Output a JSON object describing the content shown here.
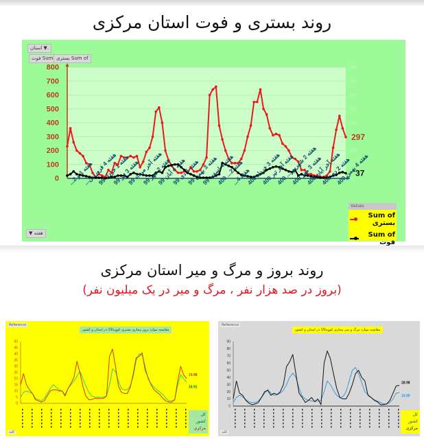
{
  "page": {
    "title_top": "روند بستری و فوت استان مرکزی",
    "title_bottom": "روند بروز و مرگ و میر استان مرکزی",
    "subtitle_bottom": "(بروز در صد هزار نفر ، مرگ و میر در یک میلیون نفر)"
  },
  "top_chart": {
    "filter_button": "استان ▼.",
    "field_buttons": [
      "Sum of فوت",
      "Sum of بستری"
    ],
    "axis_button": "هفته ▼",
    "legend_header": "Values",
    "legend": [
      {
        "label": "Sum of بستری",
        "color": "#e8191c"
      },
      {
        "label": "Sum of فوت",
        "color": "#000000"
      }
    ],
    "end_labels": {
      "hospitalized": "297",
      "deaths": "37"
    }
  },
  "bottom_left_chart": {
    "tag": "Reference",
    "title": "مقایسه موارد بروز بیماری بستری کووید19 در استان و کشور",
    "legend": [
      {
        "label": "کل کشور",
        "color": "#2ecc71"
      },
      {
        "label": "مرکزی",
        "color": "#d4370a"
      }
    ],
    "end_labels": [
      "19.98",
      "16.91"
    ],
    "footer_tag": "کلید"
  },
  "bottom_right_chart": {
    "tag": "Reference",
    "title": "مقایسه موارد مرگ و میر بیماری کووید19 در استان و کشور",
    "legend": [
      {
        "label": "کل کشور",
        "color": "#3a9ad9"
      },
      {
        "label": "مرکزی",
        "color": "#111111"
      }
    ],
    "end_labels": [
      "28.98",
      "18.88"
    ],
    "footer_tag": "کلید"
  },
  "chart_data": [
    {
      "type": "line",
      "title": "روند بستری و فوت استان مرکزی",
      "xlabel": "هفته",
      "ylabel": "",
      "ylim": [
        0,
        800
      ],
      "yticks": [
        0,
        100,
        200,
        300,
        400,
        500,
        600,
        700,
        800
      ],
      "grid": true,
      "legend_position": "bottom-right",
      "categories": [
        "هفته 1 و 2...",
        "هفته 4 فروردین...",
        "هفته 1 خرداد 99",
        "هفته 3 تیر 99",
        "هفته آخر مرداد 99",
        "هفته 2 مهر 99",
        "هفته 4 آبان 99",
        "هفته 1 دی 99",
        "هفته 3 بهمن 99",
        "هفته 4 اسفند 99",
        "هفته 2... 400",
        "هفته 4...",
        "هفته 3 خرداد 400",
        "هفته آخر تیر 400",
        "هفته 2 شهریور... 400",
        "هفته 3 مهر 400",
        "هفته آخر آبان 400",
        "هفته 2 دی 400",
        "هفته 4 بهمن 400"
      ],
      "series": [
        {
          "name": "Sum of بستری",
          "color": "#e8191c",
          "values": [
            230,
            360,
            260,
            200,
            180,
            160,
            110,
            100,
            40,
            10,
            30,
            20,
            10,
            60,
            40,
            110,
            100,
            160,
            150,
            150,
            160,
            150,
            160,
            80,
            120,
            190,
            220,
            300,
            480,
            510,
            400,
            200,
            130,
            90,
            60,
            40,
            40,
            50,
            40,
            80,
            50,
            50,
            60,
            100,
            150,
            600,
            640,
            660,
            380,
            280,
            200,
            140,
            110,
            110,
            110,
            140,
            200,
            300,
            380,
            550,
            550,
            640,
            500,
            460,
            360,
            310,
            320,
            310,
            250,
            230,
            200,
            150,
            140,
            120,
            60,
            60,
            30,
            30,
            20,
            20,
            10,
            10,
            20,
            50,
            220,
            350,
            450,
            360,
            297
          ],
          "end_label": 297
        },
        {
          "name": "Sum of فوت",
          "color": "#000000",
          "values": [
            20,
            30,
            50,
            30,
            25,
            20,
            15,
            10,
            5,
            5,
            5,
            5,
            0,
            5,
            10,
            10,
            20,
            20,
            20,
            10,
            30,
            40,
            30,
            30,
            25,
            20,
            20,
            20,
            40,
            50,
            40,
            80,
            90,
            95,
            100,
            100,
            80,
            60,
            40,
            30,
            20,
            10,
            5,
            5,
            5,
            5,
            10,
            20,
            30,
            110,
            100,
            90,
            80,
            60,
            40,
            25,
            20,
            15,
            10,
            10,
            20,
            30,
            40,
            60,
            70,
            80,
            85,
            80,
            70,
            60,
            50,
            45,
            60,
            20,
            30,
            20,
            20,
            15,
            10,
            10,
            5,
            5,
            5,
            10,
            20,
            25,
            40,
            45,
            37
          ],
          "end_label": 37
        }
      ]
    },
    {
      "type": "line",
      "title": "مقایسه موارد بروز بیماری بستری کووید19 در استان و کشور",
      "ylim": [
        0,
        50
      ],
      "yticks": [
        0,
        5,
        10,
        15,
        20,
        25,
        30,
        35,
        40,
        45,
        50
      ],
      "grid": false,
      "legend_position": "bottom-right",
      "series": [
        {
          "name": "کل کشور",
          "color": "#2ecc71",
          "values": [
            5,
            9,
            10,
            9,
            8,
            4,
            3,
            2,
            4,
            8,
            12,
            15,
            13,
            11,
            10,
            7,
            12,
            15,
            18,
            22,
            26,
            20,
            14,
            9,
            6,
            5,
            5,
            5,
            5,
            6,
            15,
            28,
            26,
            18,
            12,
            11,
            11,
            14,
            22,
            35,
            40,
            39,
            30,
            20,
            16,
            13,
            11,
            9,
            7,
            4,
            2,
            2,
            3,
            15,
            23,
            20,
            16.91
          ],
          "end_label": 16.91
        },
        {
          "name": "مرکزی",
          "color": "#d4370a",
          "values": [
            15,
            24,
            15,
            11,
            8,
            3,
            2,
            1,
            2,
            6,
            10,
            11,
            11,
            10,
            10,
            6,
            12,
            16,
            21,
            34,
            25,
            14,
            6,
            3,
            3,
            4,
            4,
            4,
            4,
            6,
            38,
            44,
            30,
            14,
            9,
            8,
            8,
            13,
            24,
            37,
            38,
            41,
            27,
            21,
            15,
            11,
            9,
            7,
            4,
            2,
            1,
            1,
            3,
            18,
            30,
            23,
            19.98
          ],
          "end_label": 19.98
        }
      ]
    },
    {
      "type": "line",
      "title": "مقایسه موارد مرگ و میر بیماری کووید19 در استان و کشور",
      "ylim": [
        0,
        90
      ],
      "yticks": [
        0,
        10,
        20,
        30,
        40,
        50,
        60,
        70,
        80,
        90
      ],
      "grid": false,
      "legend_position": "bottom-right",
      "series": [
        {
          "name": "کل کشور",
          "color": "#3a9ad9",
          "values": [
            5,
            12,
            15,
            13,
            9,
            6,
            5,
            5,
            7,
            12,
            18,
            23,
            18,
            15,
            16,
            18,
            22,
            30,
            40,
            46,
            40,
            25,
            14,
            10,
            8,
            7,
            7,
            7,
            8,
            20,
            35,
            30,
            22,
            15,
            12,
            13,
            20,
            35,
            50,
            54,
            45,
            33,
            20,
            16,
            12,
            9,
            7,
            5,
            3,
            3,
            5,
            10,
            18,
            18.88
          ],
          "end_label": 18.88
        },
        {
          "name": "مرکزی",
          "color": "#111111",
          "values": [
            10,
            35,
            18,
            15,
            8,
            4,
            2,
            3,
            5,
            12,
            20,
            22,
            15,
            18,
            16,
            20,
            30,
            55,
            62,
            72,
            45,
            18,
            12,
            5,
            8,
            12,
            6,
            10,
            2,
            60,
            77,
            66,
            45,
            25,
            12,
            10,
            10,
            18,
            30,
            45,
            50,
            40,
            35,
            15,
            12,
            8,
            6,
            2,
            2,
            3,
            8,
            18,
            28,
            28.98
          ],
          "end_label": 28.98
        }
      ]
    }
  ]
}
